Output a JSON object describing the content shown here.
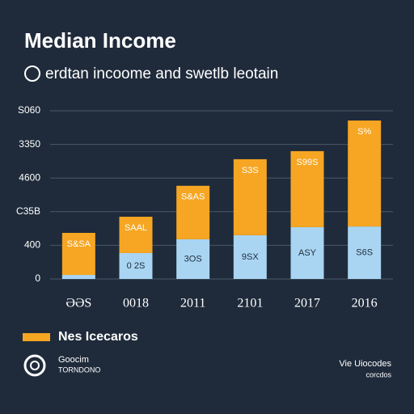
{
  "chart_data": {
    "type": "stacked_bar",
    "title": "Median Income",
    "subtitle": "erdtan incoome and swetlb leotain",
    "categories": [
      "ƏƏS",
      "0018",
      "2011",
      "2101",
      "2017",
      "2016"
    ],
    "series": [
      {
        "name": null,
        "color": "#a9d5f2",
        "values": [
          0.12,
          0.77,
          1.18,
          1.3,
          1.54,
          1.56
        ],
        "value_labels": [
          null,
          "0 2S",
          "3OS",
          "9SX",
          "ASY",
          "S6S"
        ]
      },
      {
        "name": "Nes Icecaros",
        "color": "#f6a623",
        "values": [
          1.25,
          1.08,
          1.59,
          2.26,
          2.26,
          3.15
        ],
        "value_labels": [
          "S&SA",
          "SAAL",
          "S&AS",
          "S3S",
          "S99S",
          "S%"
        ]
      }
    ],
    "ylim": [
      0,
      5
    ],
    "yticks": [
      {
        "value": 0,
        "label": "0"
      },
      {
        "value": 1,
        "label": "400"
      },
      {
        "value": 2,
        "label": "C35B"
      },
      {
        "value": 3,
        "label": "4600"
      },
      {
        "value": 4,
        "label": "3350"
      },
      {
        "value": 5,
        "label": "S060"
      }
    ],
    "grid": true,
    "legend": "bottom-left",
    "footer_left": [
      "Goocim",
      "TORNDONO"
    ],
    "footer_right": [
      "Vie Uiocodes",
      "corcdos"
    ]
  }
}
